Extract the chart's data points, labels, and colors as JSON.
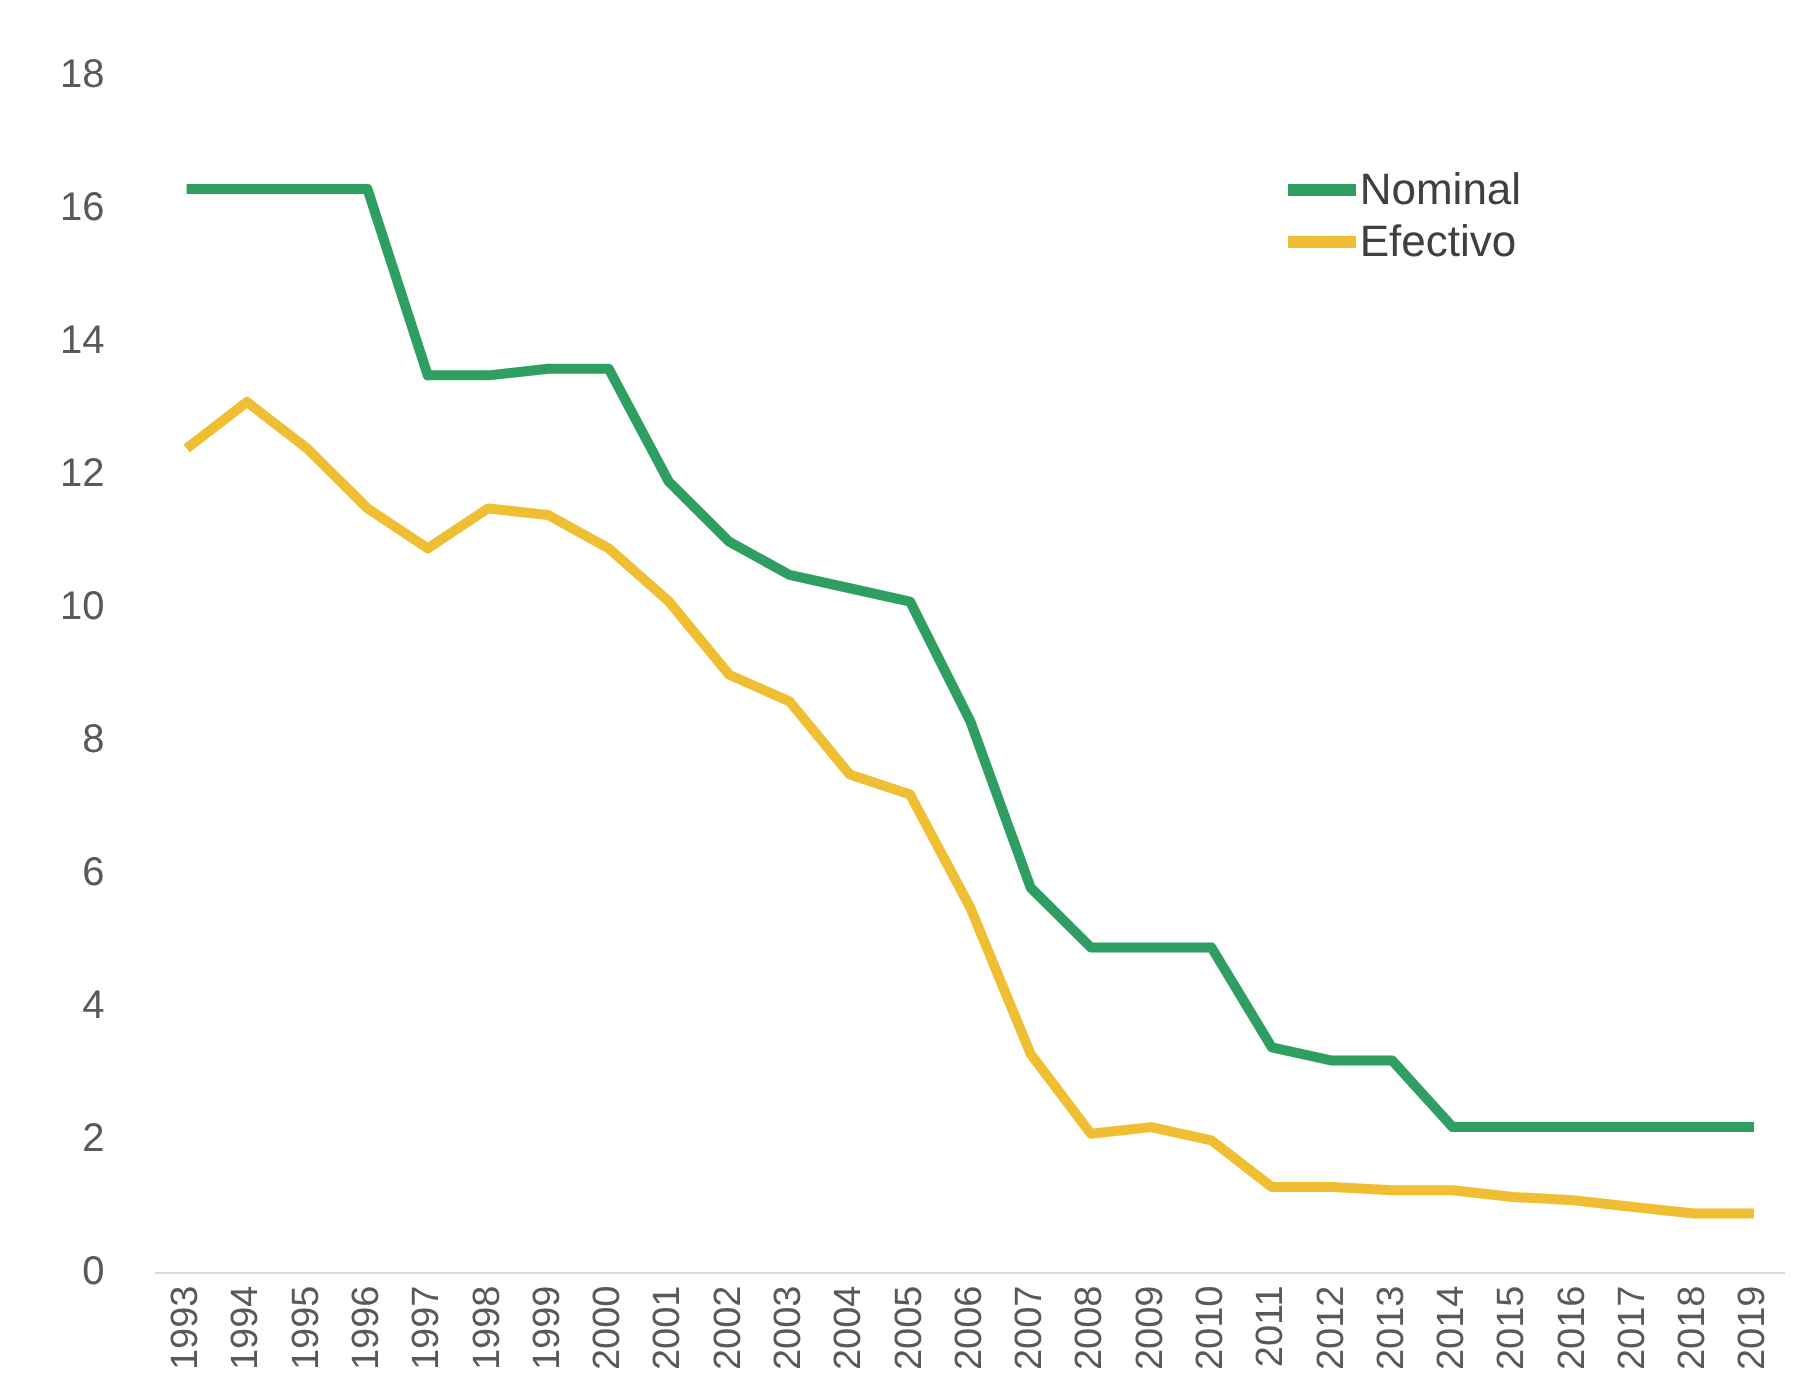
{
  "chart_data": {
    "type": "line",
    "categories": [
      "1993",
      "1994",
      "1995",
      "1996",
      "1997",
      "1998",
      "1999",
      "2000",
      "2001",
      "2002",
      "2003",
      "2004",
      "2005",
      "2006",
      "2007",
      "2008",
      "2009",
      "2010",
      "2011",
      "2012",
      "2013",
      "2014",
      "2015",
      "2016",
      "2017",
      "2018",
      "2019"
    ],
    "series": [
      {
        "name": "Nominal",
        "color": "#2e9e62",
        "values": [
          16.3,
          16.3,
          16.3,
          16.3,
          13.5,
          13.5,
          13.6,
          13.6,
          11.9,
          11.0,
          10.5,
          10.3,
          10.1,
          8.3,
          5.8,
          4.9,
          4.9,
          4.9,
          3.4,
          3.2,
          3.2,
          2.2,
          2.2,
          2.2,
          2.2,
          2.2,
          2.2
        ]
      },
      {
        "name": "Efectivo",
        "color": "#f0be32",
        "values": [
          12.4,
          13.1,
          12.4,
          11.5,
          10.9,
          11.5,
          11.4,
          10.9,
          10.1,
          9.0,
          8.6,
          7.5,
          7.2,
          5.5,
          3.3,
          2.1,
          2.2,
          2.0,
          1.3,
          1.3,
          1.25,
          1.25,
          1.15,
          1.1,
          1.0,
          0.9,
          0.9
        ]
      }
    ],
    "ylim": [
      0,
      18
    ],
    "yticks": [
      0,
      2,
      4,
      6,
      8,
      10,
      12,
      14,
      16,
      18
    ],
    "grid": false,
    "legend": "top right",
    "marker": "none",
    "line_style": "solid"
  }
}
